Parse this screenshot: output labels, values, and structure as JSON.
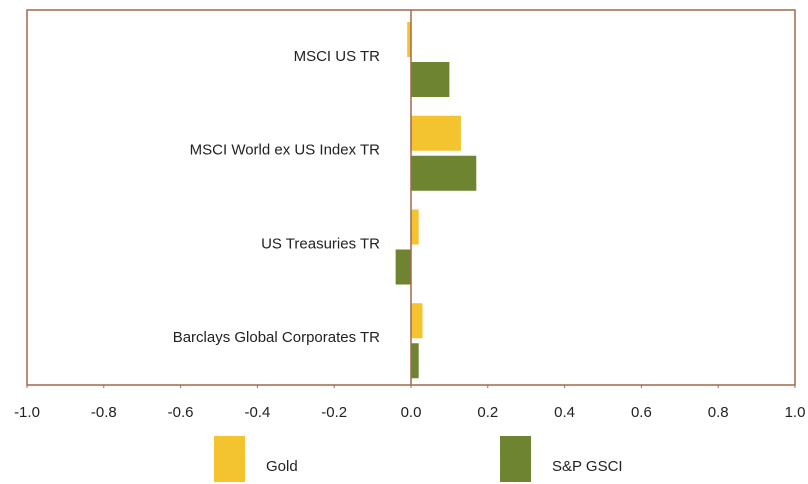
{
  "chart_data": {
    "type": "bar",
    "orientation": "horizontal",
    "categories": [
      "MSCI US TR",
      "MSCI World ex US Index TR",
      "US Treasuries TR",
      "Barclays Global Corporates TR"
    ],
    "series": [
      {
        "name": "Gold",
        "color": "#f4c430",
        "values": [
          -0.01,
          0.13,
          0.02,
          0.03
        ]
      },
      {
        "name": "S&P GSCI",
        "color": "#6f8431",
        "values": [
          0.1,
          0.17,
          -0.04,
          0.02
        ]
      }
    ],
    "xlim": [
      -1.0,
      1.0
    ],
    "xticks": [
      {
        "value": -1.0,
        "label": "-1.0"
      },
      -0.8,
      -0.6,
      -0.4,
      -0.2,
      {
        "value": 0,
        "label": "0.0"
      },
      0.2,
      0.4,
      0.6,
      0.8,
      {
        "value": 1.0,
        "label": "1.0"
      }
    ],
    "grid": false
  }
}
